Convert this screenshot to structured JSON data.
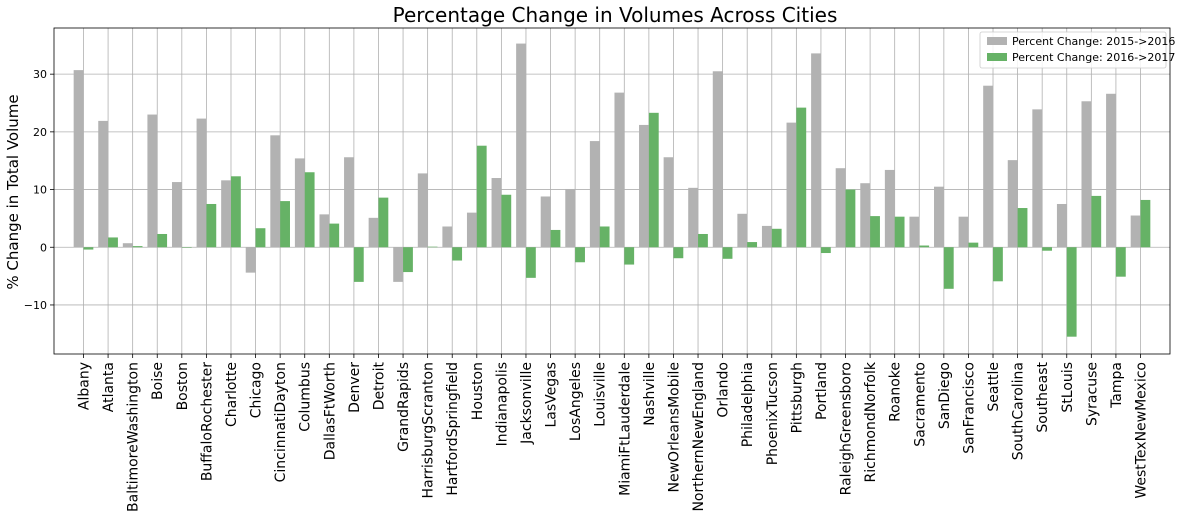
{
  "chart_data": {
    "type": "bar",
    "title": "Percentage Change in Volumes Across Cities",
    "xlabel": "",
    "ylabel": "% Change in Total Volume",
    "ylim": [
      -18.5,
      38
    ],
    "yticks": [
      -10,
      0,
      10,
      20,
      30
    ],
    "ytick_labels": [
      "−10",
      "0",
      "10",
      "20",
      "30"
    ],
    "grid": true,
    "legend_position": "top-right",
    "categories": [
      "Albany",
      "Atlanta",
      "BaltimoreWashington",
      "Boise",
      "Boston",
      "BuffaloRochester",
      "Charlotte",
      "Chicago",
      "CincinnatiDayton",
      "Columbus",
      "DallasFtWorth",
      "Denver",
      "Detroit",
      "GrandRapids",
      "HarrisburgScranton",
      "HartfordSpringfield",
      "Houston",
      "Indianapolis",
      "Jacksonville",
      "LasVegas",
      "LosAngeles",
      "Louisville",
      "MiamiFtLauderdale",
      "Nashville",
      "NewOrleansMobile",
      "NorthernNewEngland",
      "Orlando",
      "Philadelphia",
      "PhoenixTucson",
      "Pittsburgh",
      "Portland",
      "RaleighGreensboro",
      "RichmondNorfolk",
      "Roanoke",
      "Sacramento",
      "SanDiego",
      "SanFrancisco",
      "Seattle",
      "SouthCarolina",
      "Southeast",
      "StLouis",
      "Syracuse",
      "Tampa",
      "WestTexNewMexico"
    ],
    "series": [
      {
        "name": "Percent Change: 2015->2016",
        "color": "#b2b2b2",
        "values": [
          30.7,
          21.9,
          0.7,
          23.0,
          11.3,
          22.3,
          11.6,
          -4.4,
          19.4,
          15.4,
          5.7,
          15.6,
          5.1,
          -6.0,
          12.8,
          3.6,
          6.0,
          12.0,
          35.3,
          8.8,
          10.1,
          18.4,
          26.8,
          21.2,
          15.6,
          10.3,
          30.5,
          5.8,
          3.7,
          21.6,
          33.6,
          13.7,
          11.1,
          13.4,
          5.3,
          10.5,
          5.3,
          28.0,
          15.1,
          23.9,
          7.5,
          25.3,
          26.6,
          5.5
        ]
      },
      {
        "name": "Percent Change: 2016->2017",
        "color": "#66b266",
        "values": [
          -0.4,
          1.7,
          0.2,
          2.3,
          0.0,
          7.5,
          12.3,
          3.3,
          8.0,
          13.0,
          4.1,
          -6.0,
          8.6,
          -4.3,
          0.1,
          -2.3,
          17.6,
          9.1,
          -5.3,
          3.0,
          -2.6,
          3.6,
          -3.0,
          23.3,
          -1.9,
          2.3,
          -2.0,
          0.9,
          3.2,
          24.2,
          -1.0,
          10.0,
          5.4,
          5.3,
          0.3,
          -7.2,
          0.8,
          -5.9,
          6.8,
          -0.6,
          -15.5,
          8.9,
          -5.1,
          8.2
        ]
      }
    ]
  }
}
